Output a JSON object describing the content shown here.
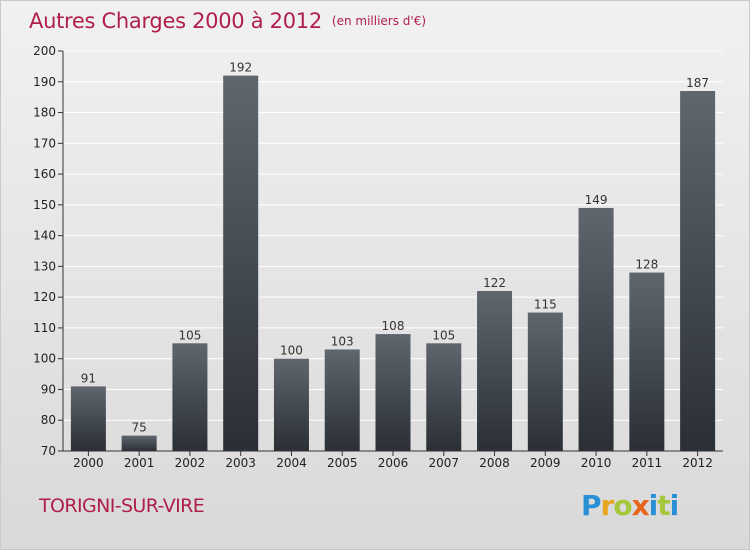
{
  "header": {
    "title": "Autres Charges 2000 à 2012",
    "subtitle": "(en milliers d'€)"
  },
  "footer": {
    "commune": "TORIGNI-SUR-VIRE"
  },
  "logo": {
    "letters": [
      "P",
      "r",
      "o",
      "x",
      "i",
      "t",
      "i"
    ]
  },
  "chart_data": {
    "type": "bar",
    "title": "Autres Charges 2000 à 2012",
    "subtitle": "(en milliers d'€)",
    "categories": [
      "2000",
      "2001",
      "2002",
      "2003",
      "2004",
      "2005",
      "2006",
      "2007",
      "2008",
      "2009",
      "2010",
      "2011",
      "2012"
    ],
    "values": [
      91,
      75,
      105,
      192,
      100,
      103,
      108,
      105,
      122,
      115,
      149,
      128,
      187
    ],
    "ylim": [
      70,
      200
    ],
    "yticks": [
      70,
      80,
      90,
      100,
      110,
      120,
      130,
      140,
      150,
      160,
      170,
      180,
      190,
      200
    ],
    "grid": true,
    "bar_color": "#3e444b"
  }
}
